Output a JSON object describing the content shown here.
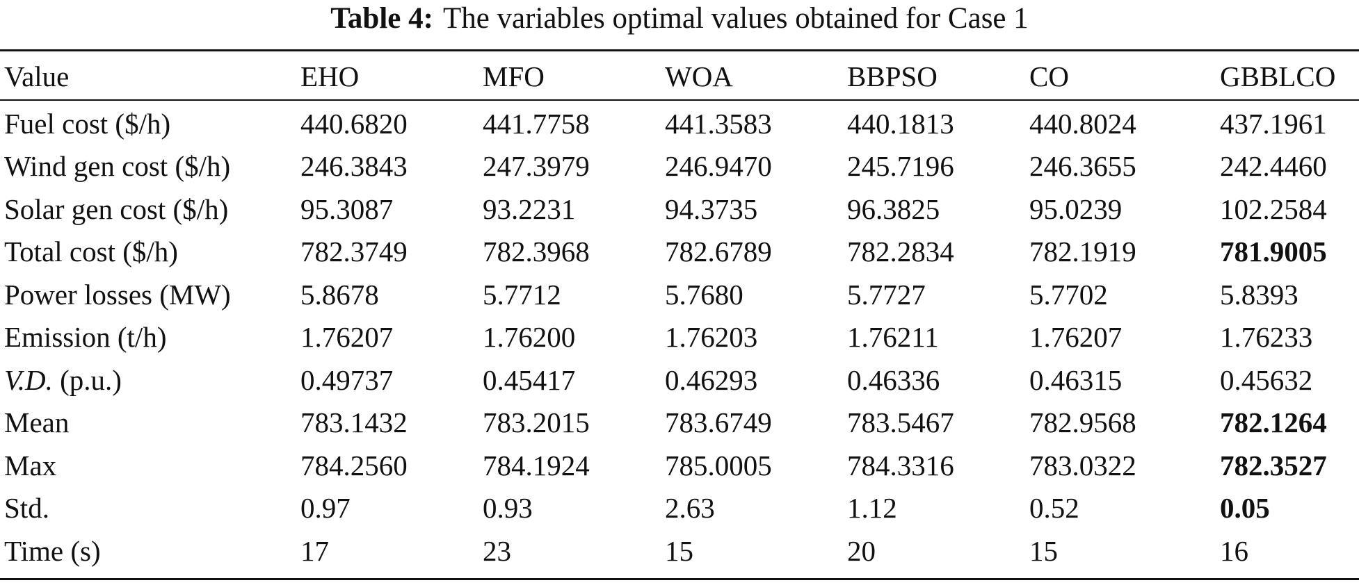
{
  "caption": {
    "label": "Table 4:",
    "text": "The variables optimal values obtained for Case 1"
  },
  "table": {
    "columns": [
      "Value",
      "EHO",
      "MFO",
      "WOA",
      "BBPSO",
      "CO",
      "GBBLCO"
    ],
    "rows": [
      {
        "label": "Fuel cost ($/h)",
        "values": [
          "440.6820",
          "441.7758",
          "441.3583",
          "440.1813",
          "440.8024",
          "437.1961"
        ]
      },
      {
        "label": "Wind gen cost ($/h)",
        "values": [
          "246.3843",
          "247.3979",
          "246.9470",
          "245.7196",
          "246.3655",
          "242.4460"
        ]
      },
      {
        "label": "Solar gen cost ($/h)",
        "values": [
          "95.3087",
          "93.2231",
          "94.3735",
          "96.3825",
          "95.0239",
          "102.2584"
        ]
      },
      {
        "label": "Total cost ($/h)",
        "values": [
          "782.3749",
          "782.3968",
          "782.6789",
          "782.2834",
          "782.1919",
          "781.9005"
        ],
        "bold_last": true
      },
      {
        "label": "Power losses (MW)",
        "values": [
          "5.8678",
          "5.7712",
          "5.7680",
          "5.7727",
          "5.7702",
          "5.8393"
        ]
      },
      {
        "label": "Emission (t/h)",
        "values": [
          "1.76207",
          "1.76200",
          "1.76203",
          "1.76211",
          "1.76207",
          "1.76233"
        ]
      },
      {
        "label_italic": "V.D.",
        "label_rest": " (p.u.)",
        "values": [
          "0.49737",
          "0.45417",
          "0.46293",
          "0.46336",
          "0.46315",
          "0.45632"
        ]
      },
      {
        "label": "Mean",
        "values": [
          "783.1432",
          "783.2015",
          "783.6749",
          "783.5467",
          "782.9568",
          "782.1264"
        ],
        "bold_last": true
      },
      {
        "label": "Max",
        "values": [
          "784.2560",
          "784.1924",
          "785.0005",
          "784.3316",
          "783.0322",
          "782.3527"
        ],
        "bold_last": true
      },
      {
        "label": "Std.",
        "values": [
          "0.97",
          "0.93",
          "2.63",
          "1.12",
          "0.52",
          "0.05"
        ],
        "bold_last": true
      },
      {
        "label": "Time (s)",
        "values": [
          "17",
          "23",
          "15",
          "20",
          "15",
          "16"
        ]
      }
    ]
  }
}
